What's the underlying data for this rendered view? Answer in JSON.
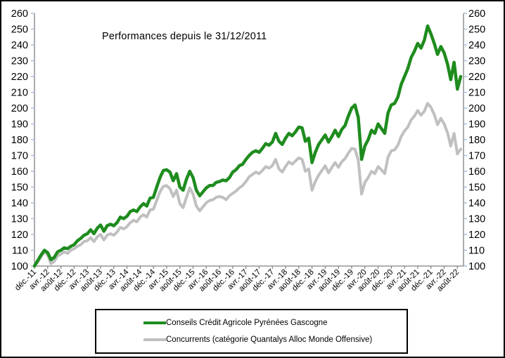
{
  "window": {
    "background": "#FFFFFF",
    "border_color": "#000000"
  },
  "chart_data": {
    "type": "line",
    "title": "Performances depuis le 31/12/2011",
    "grid": false,
    "plot_background": "#FFFFFF",
    "axis_line_color": "#808080",
    "value_tick_color": "#A8BEDC",
    "category_tick_color": "#808080",
    "y_axis": {
      "min": 100,
      "max": 260,
      "step": 10,
      "sides": "both",
      "tick_labels": [
        "260",
        "250",
        "240",
        "230",
        "220",
        "210",
        "200",
        "190",
        "180",
        "170",
        "160",
        "150",
        "140",
        "130",
        "120",
        "110",
        "100"
      ]
    },
    "x_axis": {
      "label_rotation_deg": -45,
      "months_per_tick": 4,
      "tick_labels": [
        "déc.-11",
        "avr.-12",
        "août-12",
        "déc.-12",
        "avr.-13",
        "août-13",
        "déc.-13",
        "avr.-14",
        "août-14",
        "déc.-14",
        "avr.-15",
        "août-15",
        "déc.-15",
        "avr.-16",
        "août-16",
        "déc.-16",
        "avr.-17",
        "août-17",
        "déc.-17",
        "avr.-18",
        "août-18",
        "déc.-18",
        "avr.-19",
        "août-19",
        "déc.-19",
        "avr.-20",
        "août-20",
        "déc.-20",
        "avr.-21",
        "août-21",
        "déc.-21",
        "avr.-22",
        "août-22"
      ]
    },
    "series": [
      {
        "name": "Conseils Crédit Agricole Pyrénées Gascogne",
        "color": "#1E8C1E",
        "stroke_width": 4.5,
        "start_month": "déc.-11",
        "values": [
          100,
          103.5,
          107,
          110,
          108.5,
          104,
          105.5,
          109,
          110,
          111.5,
          111,
          112.5,
          113.5,
          116,
          117.5,
          119.5,
          120.5,
          123,
          120.5,
          124,
          126,
          122,
          125.5,
          126.5,
          125.5,
          127.5,
          131,
          130,
          131.5,
          134.5,
          135.5,
          134.5,
          137.5,
          139.5,
          138,
          143,
          143.5,
          150,
          156,
          160.5,
          161,
          159.5,
          154,
          158.5,
          150,
          148,
          155,
          160,
          156,
          148,
          144.5,
          147,
          149.5,
          151,
          151,
          153,
          153.5,
          154.5,
          154,
          156,
          159.5,
          161,
          163.5,
          164.5,
          167.5,
          170,
          172,
          173,
          172,
          174.5,
          177.5,
          176.5,
          178.5,
          184,
          179,
          177,
          181,
          184,
          182.5,
          185,
          188,
          187.5,
          179,
          181,
          165.5,
          172,
          177,
          180,
          183,
          178.5,
          182,
          186,
          182,
          186.5,
          189,
          195,
          200,
          202,
          194,
          167.5,
          176,
          180,
          186,
          184,
          190,
          187,
          184,
          197,
          202,
          203,
          207,
          215,
          220,
          225,
          232,
          236,
          241,
          238,
          243,
          252,
          247,
          241,
          234,
          239,
          235,
          228,
          218,
          229,
          212,
          220
        ]
      },
      {
        "name": "Concurrents (catégorie Quantalys Alloc Monde Offensive)",
        "color": "#C0C0C0",
        "stroke_width": 4,
        "start_month": "déc.-11",
        "values": [
          100,
          102.5,
          106,
          109,
          107,
          101.5,
          103,
          106.5,
          107.5,
          109,
          108,
          110,
          111,
          112.5,
          113.5,
          115.5,
          116,
          118,
          115.5,
          118.5,
          120,
          116.5,
          119.5,
          120.5,
          119.5,
          121.5,
          124.5,
          123.5,
          125,
          127.5,
          129,
          128,
          131,
          132.5,
          131,
          135.5,
          136,
          141.5,
          147,
          150.5,
          151,
          149,
          144,
          148,
          139.5,
          137,
          143.5,
          149.5,
          145.5,
          138,
          135,
          137.5,
          140,
          141.5,
          142,
          143.5,
          144,
          143.5,
          142,
          144.5,
          146,
          147.5,
          149.5,
          151,
          153.5,
          156.5,
          158,
          159.5,
          158.5,
          160.5,
          163,
          162,
          163.5,
          167.5,
          161.5,
          159.5,
          163,
          166,
          164.5,
          166.5,
          168.5,
          167.5,
          160,
          161.5,
          148,
          153.5,
          157.5,
          160.5,
          163.5,
          159,
          162.5,
          165.5,
          162.5,
          166,
          168,
          171.5,
          174.5,
          174,
          167,
          145.5,
          153,
          156,
          160,
          158.5,
          163,
          161,
          158.5,
          169,
          173,
          173.5,
          176.5,
          182,
          185.5,
          188,
          192.5,
          195,
          198.5,
          195.5,
          198,
          203,
          200.5,
          196,
          189.5,
          193.5,
          190,
          184.5,
          176,
          184,
          171,
          174
        ]
      }
    ],
    "legend": {
      "position": "bottom",
      "border_color": "#000000",
      "items": [
        {
          "label": "Conseils Crédit Agricole Pyrénées Gascogne",
          "color": "#1E8C1E"
        },
        {
          "label": "Concurrents (catégorie Quantalys Alloc Monde Offensive)",
          "color": "#C0C0C0"
        }
      ]
    }
  }
}
